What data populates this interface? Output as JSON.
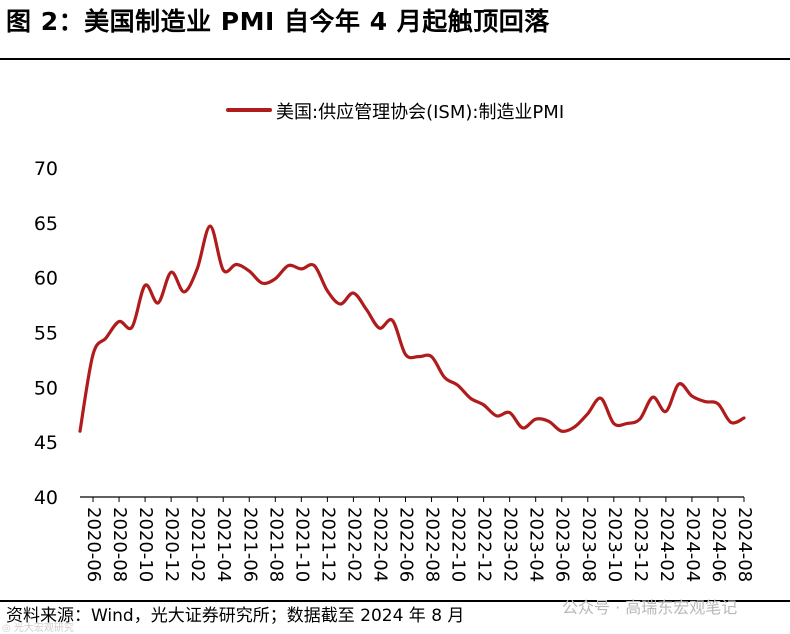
{
  "header": {
    "title": "图 2：美国制造业 PMI 自今年 4 月起触顶回落"
  },
  "footer": {
    "source": "资料来源：Wind，光大证券研究所；数据截至 2024 年 8 月",
    "watermark": "公众号 · 高瑞东宏观笔记",
    "watermark_left": "◎ 光大宏观研究"
  },
  "colors": {
    "series": "#b01c1c",
    "axis": "#000000"
  },
  "chart_data": {
    "type": "line",
    "title": "",
    "xlabel": "",
    "ylabel": "",
    "ylim": [
      40,
      70
    ],
    "yticks": [
      40,
      45,
      50,
      55,
      60,
      65,
      70
    ],
    "grid": false,
    "legend_position": "top-center",
    "tick_labels": [
      "2020-06",
      "2020-08",
      "2020-10",
      "2020-12",
      "2021-02",
      "2021-04",
      "2021-06",
      "2021-08",
      "2021-10",
      "2021-12",
      "2022-02",
      "2022-04",
      "2022-06",
      "2022-08",
      "2022-10",
      "2022-12",
      "2023-02",
      "2023-04",
      "2023-06",
      "2023-08",
      "2023-10",
      "2023-12",
      "2024-02",
      "2024-04",
      "2024-06",
      "2024-08"
    ],
    "series": [
      {
        "name": "美国:供应管理协会(ISM):制造业PMI",
        "x": [
          "2020-05",
          "2020-06",
          "2020-07",
          "2020-08",
          "2020-09",
          "2020-10",
          "2020-11",
          "2020-12",
          "2021-01",
          "2021-02",
          "2021-03",
          "2021-04",
          "2021-05",
          "2021-06",
          "2021-07",
          "2021-08",
          "2021-09",
          "2021-10",
          "2021-11",
          "2021-12",
          "2022-01",
          "2022-02",
          "2022-03",
          "2022-04",
          "2022-05",
          "2022-06",
          "2022-07",
          "2022-08",
          "2022-09",
          "2022-10",
          "2022-11",
          "2022-12",
          "2023-01",
          "2023-02",
          "2023-03",
          "2023-04",
          "2023-05",
          "2023-06",
          "2023-07",
          "2023-08",
          "2023-09",
          "2023-10",
          "2023-11",
          "2023-12",
          "2024-01",
          "2024-02",
          "2024-03",
          "2024-04",
          "2024-05",
          "2024-06",
          "2024-07",
          "2024-08"
        ],
        "values": [
          46.0,
          53.0,
          54.5,
          56.0,
          55.5,
          59.3,
          57.7,
          60.5,
          58.7,
          60.8,
          64.7,
          60.7,
          61.2,
          60.6,
          59.5,
          59.9,
          61.1,
          60.8,
          61.1,
          58.8,
          57.6,
          58.6,
          57.1,
          55.4,
          56.1,
          53.0,
          52.8,
          52.8,
          50.9,
          50.2,
          49.0,
          48.4,
          47.4,
          47.7,
          46.3,
          47.1,
          46.9,
          46.0,
          46.4,
          47.6,
          49.0,
          46.7,
          46.7,
          47.1,
          49.1,
          47.8,
          50.3,
          49.2,
          48.7,
          48.5,
          46.8,
          47.2
        ]
      }
    ]
  }
}
